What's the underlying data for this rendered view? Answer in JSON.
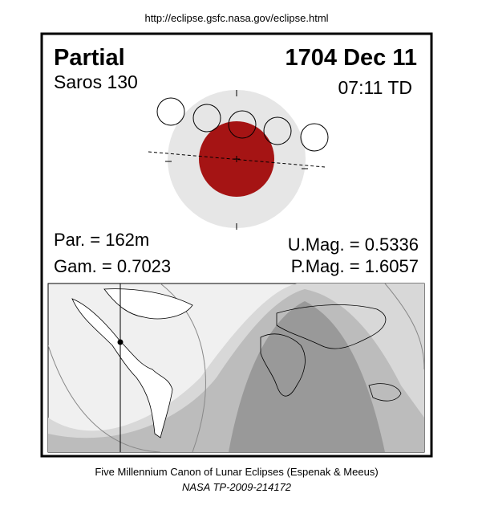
{
  "header": {
    "url": "http://eclipse.gsfc.nasa.gov/eclipse.html"
  },
  "panel": {
    "eclipse_type": "Partial",
    "date": "1704 Dec 11",
    "saros": "Saros 130",
    "time": "07:11 TD",
    "parameters": {
      "partial_duration": "Par. = 162m",
      "gamma": "Gam. = 0.7023",
      "umbral_magnitude": "U.Mag. = 0.5336",
      "penumbral_magnitude": "P.Mag. = 1.6057"
    }
  },
  "footer": {
    "source": "Five Millennium Canon of Lunar Eclipses (Espenak & Meeus)",
    "reference": "NASA TP-2009-214172"
  }
}
